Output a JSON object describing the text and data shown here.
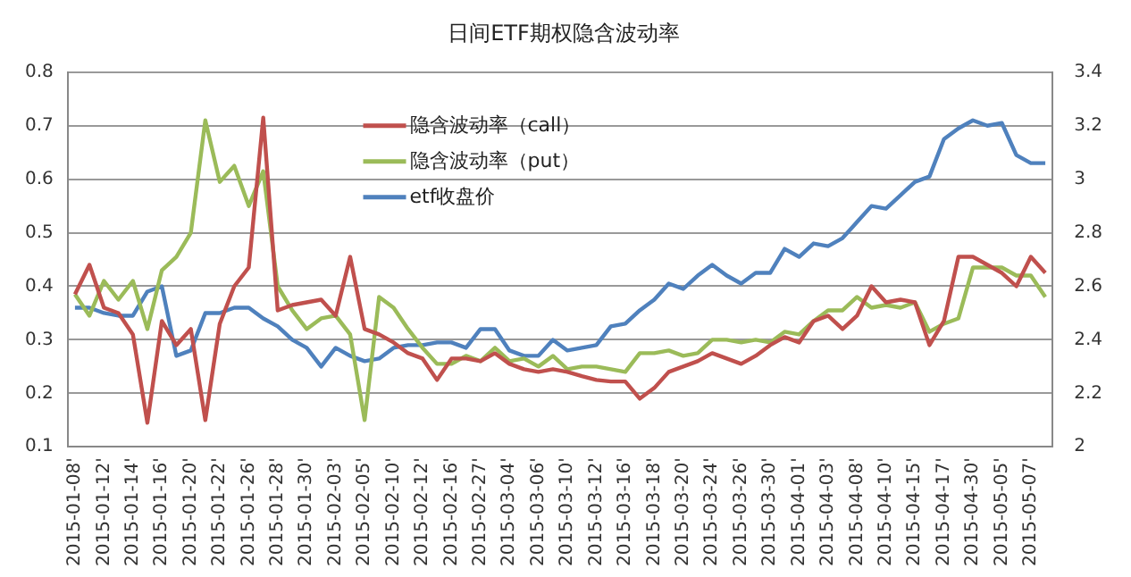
{
  "chart_data": {
    "type": "line",
    "title": "日间ETF期权隐含波动率",
    "categories": [
      "2015-01-08'",
      null,
      "2015-01-12'",
      null,
      "2015-01-14'",
      null,
      "2015-01-16'",
      null,
      "2015-01-20'",
      null,
      "2015-01-22'",
      null,
      "2015-01-26'",
      null,
      "2015-01-28'",
      null,
      "2015-01-30'",
      null,
      "2015-02-03'",
      null,
      "2015-02-05'",
      null,
      "2015-02-10'",
      null,
      "2015-02-12'",
      null,
      "2015-02-16'",
      null,
      "2015-02-27'",
      null,
      "2015-03-04'",
      null,
      "2015-03-06'",
      null,
      "2015-03-10'",
      null,
      "2015-03-12'",
      null,
      "2015-03-16'",
      null,
      "2015-03-18'",
      null,
      "2015-03-20'",
      null,
      "2015-03-24'",
      null,
      "2015-03-26'",
      null,
      "2015-03-30'",
      null,
      "2015-04-01'",
      null,
      "2015-04-03'",
      null,
      "2015-04-08'",
      null,
      "2015-04-10'",
      null,
      "2015-04-15'",
      null,
      "2015-04-17'",
      null,
      "2015-04-30'",
      null,
      "2015-05-05'",
      null,
      "2015-05-07'",
      null
    ],
    "series": [
      {
        "name": "隐含波动率（call）",
        "color": "#c0504d",
        "values": [
          0.385,
          0.44,
          0.36,
          0.35,
          0.31,
          0.145,
          0.335,
          0.29,
          0.32,
          0.15,
          0.33,
          0.4,
          0.435,
          0.715,
          0.355,
          0.365,
          0.37,
          0.375,
          0.345,
          0.455,
          0.32,
          0.31,
          0.295,
          0.275,
          0.265,
          0.225,
          0.265,
          0.265,
          0.26,
          0.275,
          0.255,
          0.245,
          0.24,
          0.245,
          0.24,
          0.232,
          0.225,
          0.222,
          0.222,
          0.19,
          0.21,
          0.24,
          0.25,
          0.26,
          0.275,
          0.265,
          0.255,
          0.27,
          0.29,
          0.305,
          0.295,
          0.335,
          0.345,
          0.32,
          0.345,
          0.4,
          0.37,
          0.375,
          0.37,
          0.29,
          0.335,
          0.455,
          0.455,
          0.44,
          0.425,
          0.4,
          0.455,
          0.425
        ]
      },
      {
        "name": "隐含波动率（put）",
        "color": "#9bbb59",
        "values": [
          0.385,
          0.345,
          0.41,
          0.375,
          0.41,
          0.32,
          0.43,
          0.455,
          0.5,
          0.71,
          0.595,
          0.625,
          0.55,
          0.615,
          0.4,
          0.355,
          0.32,
          0.34,
          0.345,
          0.31,
          0.15,
          0.38,
          0.36,
          0.32,
          0.285,
          0.255,
          0.255,
          0.27,
          0.26,
          0.285,
          0.26,
          0.265,
          0.25,
          0.27,
          0.245,
          0.25,
          0.25,
          0.245,
          0.24,
          0.275,
          0.275,
          0.28,
          0.27,
          0.275,
          0.3,
          0.3,
          0.295,
          0.3,
          0.295,
          0.315,
          0.31,
          0.335,
          0.355,
          0.355,
          0.38,
          0.36,
          0.365,
          0.36,
          0.37,
          0.315,
          0.33,
          0.34,
          0.435,
          0.435,
          0.435,
          0.42,
          0.42,
          0.38
        ]
      },
      {
        "name": "etf收盘价",
        "color": "#4f81bd",
        "axis": "y2",
        "values": [
          2.52,
          2.52,
          2.5,
          2.49,
          2.49,
          2.58,
          2.6,
          2.34,
          2.36,
          2.5,
          2.5,
          2.52,
          2.52,
          2.48,
          2.45,
          2.4,
          2.37,
          2.3,
          2.37,
          2.34,
          2.32,
          2.33,
          2.37,
          2.38,
          2.38,
          2.39,
          2.39,
          2.37,
          2.44,
          2.44,
          2.36,
          2.34,
          2.34,
          2.4,
          2.36,
          2.37,
          2.38,
          2.45,
          2.46,
          2.51,
          2.55,
          2.61,
          2.59,
          2.64,
          2.68,
          2.64,
          2.61,
          2.65,
          2.65,
          2.74,
          2.71,
          2.76,
          2.75,
          2.78,
          2.84,
          2.9,
          2.89,
          2.94,
          2.99,
          3.01,
          3.15,
          3.19,
          3.22,
          3.2,
          3.21,
          3.09,
          3.06,
          3.06
        ]
      }
    ],
    "ylim": [
      0.1,
      0.8
    ],
    "yticks": [
      0.1,
      0.2,
      0.3,
      0.4,
      0.5,
      0.6,
      0.7,
      0.8
    ],
    "y2lim": [
      2,
      3.4
    ],
    "y2ticks": [
      2,
      2.2,
      2.4,
      2.6,
      2.8,
      3,
      3.2,
      3.4
    ],
    "grid": "y",
    "legend": "top",
    "marker": "none",
    "line_style": "solid"
  }
}
